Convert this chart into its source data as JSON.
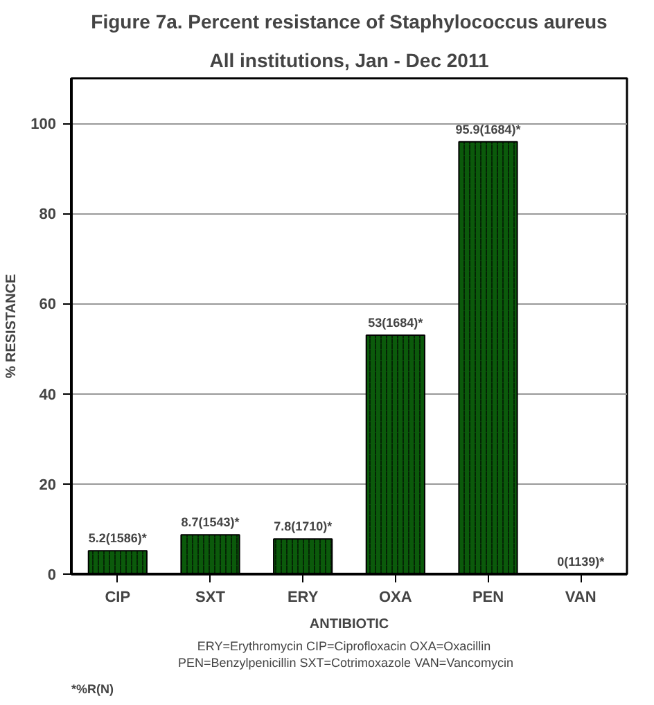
{
  "chart_data": {
    "type": "bar",
    "title": "Figure 7a. Percent resistance of Staphylococcus aureus",
    "subtitle": "All institutions, Jan - Dec 2011",
    "xlabel": "ANTIBIOTIC",
    "ylabel": "% RESISTANCE",
    "categories": [
      "CIP",
      "SXT",
      "ERY",
      "OXA",
      "PEN",
      "VAN"
    ],
    "values": [
      5.2,
      8.7,
      7.8,
      53,
      95.9,
      0
    ],
    "value_labels": [
      "5.2(1586)*",
      "8.7(1543)*",
      "7.8(1710)*",
      "53(1684)*",
      "95.9(1684)*",
      "0(1139)*"
    ],
    "color": "#0b5a0b",
    "ylim": [
      0,
      110
    ],
    "yticks": [
      0,
      20,
      40,
      60,
      80,
      100
    ],
    "grid": "y",
    "annotations": [
      "ERY=Erythromycin   CIP=Ciprofloxacin  OXA=Oxacillin",
      "PEN=Benzylpenicillin  SXT=Cotrimoxazole  VAN=Vancomycin",
      "*%R(N)"
    ]
  }
}
